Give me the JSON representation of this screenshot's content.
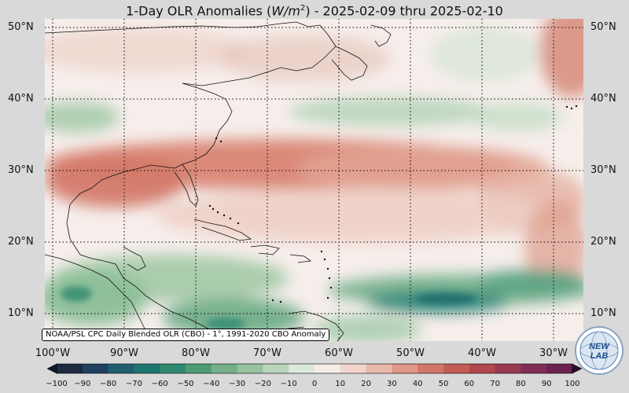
{
  "title": {
    "prefix": "1-Day OLR Anomalies (",
    "unit_base": "W/m",
    "unit_exp": "2",
    "suffix": ") - 2025-02-09 thru 2025-02-10"
  },
  "latitude_labels": [
    "50°N",
    "40°N",
    "30°N",
    "20°N",
    "10°N"
  ],
  "longitude_labels": [
    "100°W",
    "90°W",
    "80°W",
    "70°W",
    "60°W",
    "50°W",
    "40°W",
    "30°W"
  ],
  "source_note": "NOAA/PSL CPC Daily Blended OLR (CBO) - 1°, 1991-2020 CBO Anomaly",
  "colorbar": {
    "ticks": [
      "−100",
      "−90",
      "−80",
      "−70",
      "−60",
      "−50",
      "−40",
      "−30",
      "−20",
      "−10",
      "0",
      "10",
      "20",
      "30",
      "40",
      "50",
      "60",
      "70",
      "80",
      "90",
      "100"
    ],
    "colors": [
      "#1d2a40",
      "#1f4060",
      "#1f5f6f",
      "#1e7670",
      "#2f8a6f",
      "#4f9c73",
      "#73b08a",
      "#96c29f",
      "#b9d6bd",
      "#dbe9dc",
      "#f6ece8",
      "#f1d5cc",
      "#e9b8aa",
      "#df9888",
      "#d27768",
      "#c35c55",
      "#b04850",
      "#9a3a52",
      "#822d55",
      "#6a2250"
    ]
  },
  "logo": {
    "text": "NEW LAB",
    "icon": "globe-icon"
  },
  "colors": {
    "background": "#d9d9d9",
    "ocean_neutral": "#f7efec",
    "land_line": "#111111"
  }
}
